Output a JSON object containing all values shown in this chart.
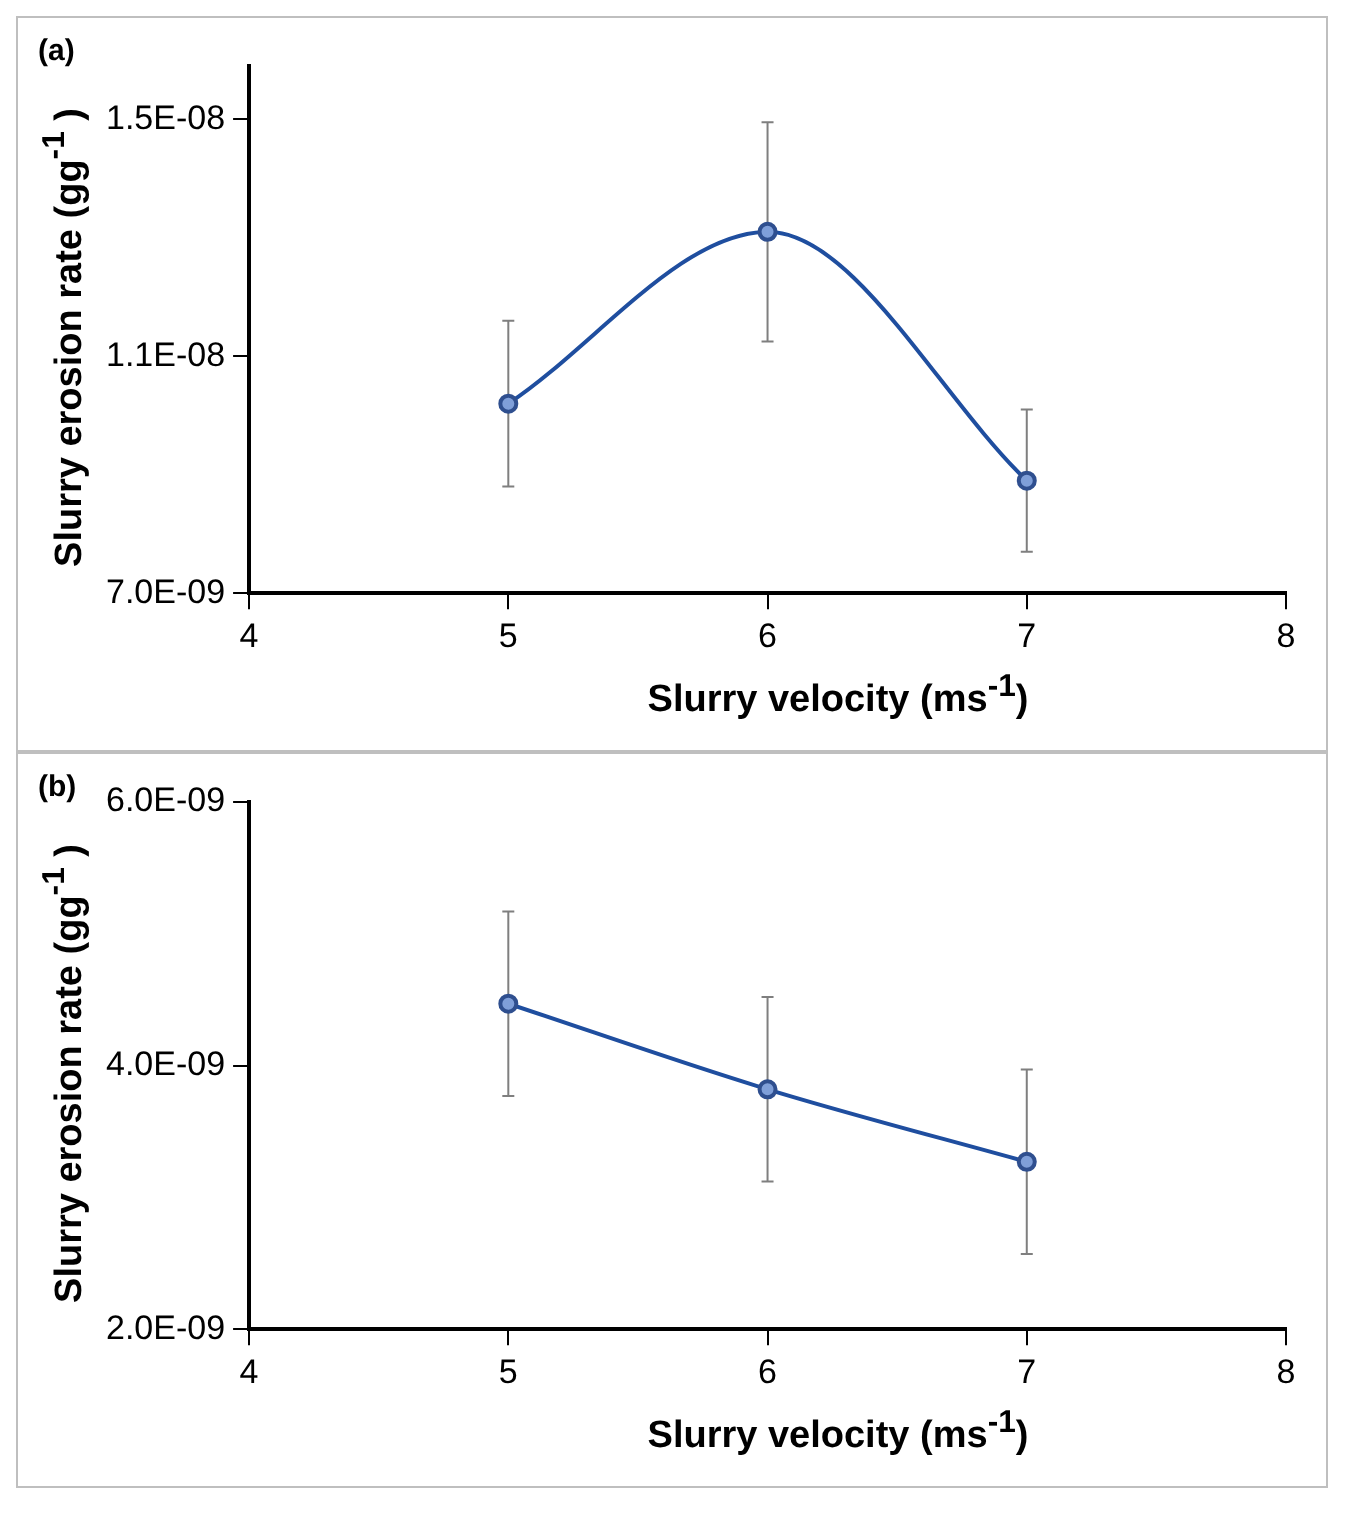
{
  "chart_data": [
    {
      "type": "line",
      "annotations": [
        "(a)"
      ],
      "xlabel": "Slurry velocity (ms$^{-1}$)",
      "ylabel": "Slurry erosion rate (gg$^{-1}$ )",
      "x": [
        5,
        6,
        7
      ],
      "series": [
        {
          "color": "#1f4e9f",
          "values": [
            1.02e-08,
            1.31e-08,
            8.9e-09
          ],
          "errors": [
            1.4e-09,
            1.85e-09,
            1.2e-09
          ]
        }
      ],
      "xlim": [
        4,
        8
      ],
      "xticks": [
        4,
        5,
        6,
        7,
        8
      ],
      "ylim": [
        7e-09,
        1.59e-08
      ],
      "yticks": [
        {
          "value": 7e-09,
          "label": "7.0E-09"
        },
        {
          "value": 1.1e-08,
          "label": "1.1E-08"
        },
        {
          "value": 1.5e-08,
          "label": "1.5E-08"
        }
      ],
      "grid": false,
      "legend": false,
      "marker": "circle",
      "line_style": "solid"
    },
    {
      "type": "line",
      "annotations": [
        "(b)"
      ],
      "xlabel": "Slurry velocity (ms$^{-1}$)",
      "ylabel": "Slurry erosion rate (gg$^{-1}$ )",
      "x": [
        5,
        6,
        7
      ],
      "series": [
        {
          "color": "#1f4e9f",
          "values": [
            4.47e-09,
            3.82e-09,
            3.27e-09
          ],
          "errors": [
            7e-10,
            7e-10,
            7e-10
          ]
        }
      ],
      "xlim": [
        4,
        8
      ],
      "xticks": [
        4,
        5,
        6,
        7,
        8
      ],
      "ylim": [
        2e-09,
        6e-09
      ],
      "yticks": [
        {
          "value": 2e-09,
          "label": "2.0E-09"
        },
        {
          "value": 4e-09,
          "label": "4.0E-09"
        },
        {
          "value": 6e-09,
          "label": "6.0E-09"
        }
      ],
      "grid": false,
      "legend": false,
      "marker": "circle",
      "line_style": "solid"
    }
  ]
}
